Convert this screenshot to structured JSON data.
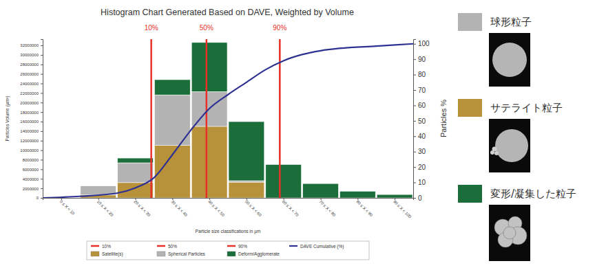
{
  "chart_data": {
    "type": "histogram",
    "title": "Histogram Chart Generated Based on DAVE, Weighted by Volume",
    "x_label": "Particle size classifications in µm",
    "y_label": "Particles Volume (µm³)",
    "y2_label": "Particles %",
    "bins": [
      0,
      10,
      20,
      30,
      40,
      50,
      60,
      70,
      80,
      90,
      100
    ],
    "xlim": [
      0,
      100
    ],
    "xticks": [
      {
        "value": 5,
        "label": "0 ≤ X < 10"
      },
      {
        "value": 15,
        "label": "10 ≤ X < 20"
      },
      {
        "value": 25,
        "label": "20 ≤ X < 30"
      },
      {
        "value": 35,
        "label": "30 ≤ X < 40"
      },
      {
        "value": 45,
        "label": "40 ≤ X < 50"
      },
      {
        "value": 55,
        "label": "50 ≤ X < 60"
      },
      {
        "value": 65,
        "label": "60 ≤ X < 70"
      },
      {
        "value": 75,
        "label": "70 ≤ X < 80"
      },
      {
        "value": 85,
        "label": "80 ≤ X < 90"
      },
      {
        "value": 95,
        "label": "90 ≤ X < 100"
      }
    ],
    "ylim": [
      0,
      33300000
    ],
    "yticks": [
      0,
      2000000,
      4000000,
      6000000,
      8000000,
      10000000,
      12000000,
      14000000,
      16000000,
      18000000,
      20000000,
      22000000,
      24000000,
      26000000,
      28000000,
      30000000,
      32000000
    ],
    "y2lim": [
      0,
      103
    ],
    "y2ticks": [
      0,
      10,
      20,
      30,
      40,
      50,
      60,
      70,
      80,
      90,
      100
    ],
    "stacked": true,
    "grid": false,
    "legend": "bottom",
    "series": [
      {
        "name": "Satellite(s)",
        "label": "サテライト粒子",
        "type": "bar",
        "color": "#b8923a",
        "values": [
          0,
          600000,
          3200000,
          11000000,
          15000000,
          3300000,
          0,
          0,
          0,
          0
        ]
      },
      {
        "name": "Spherical Particles",
        "label": "球形粒子",
        "type": "bar",
        "color": "#b3b3b3",
        "values": [
          0,
          1900000,
          4150000,
          10600000,
          7300000,
          300000,
          0,
          0,
          0,
          0
        ]
      },
      {
        "name": "Deform/Agglomerate",
        "label": "変形/凝集した粒子",
        "type": "bar",
        "color": "#1b6e3a",
        "values": [
          0,
          0,
          1000000,
          3200000,
          10300000,
          12400000,
          7000000,
          3000000,
          1400000,
          700000
        ]
      },
      {
        "name": "DAVE Cumulative (%)",
        "type": "line",
        "axis": "y2",
        "color": "#2e3192",
        "x": [
          0,
          10,
          20,
          25,
          30,
          35,
          40,
          45,
          50,
          55,
          60,
          65,
          70,
          75,
          80,
          90,
          100
        ],
        "values": [
          0,
          1,
          3,
          6.5,
          13,
          28,
          44,
          58,
          67,
          75,
          83,
          89,
          93,
          95.5,
          97,
          98.5,
          100
        ]
      }
    ],
    "annotations": [
      {
        "text": "10%",
        "x": 29.3,
        "color": "#e8302a"
      },
      {
        "text": "50%",
        "x": 44.2,
        "color": "#e8302a"
      },
      {
        "text": "90%",
        "x": 64,
        "color": "#e8302a"
      }
    ]
  }
}
